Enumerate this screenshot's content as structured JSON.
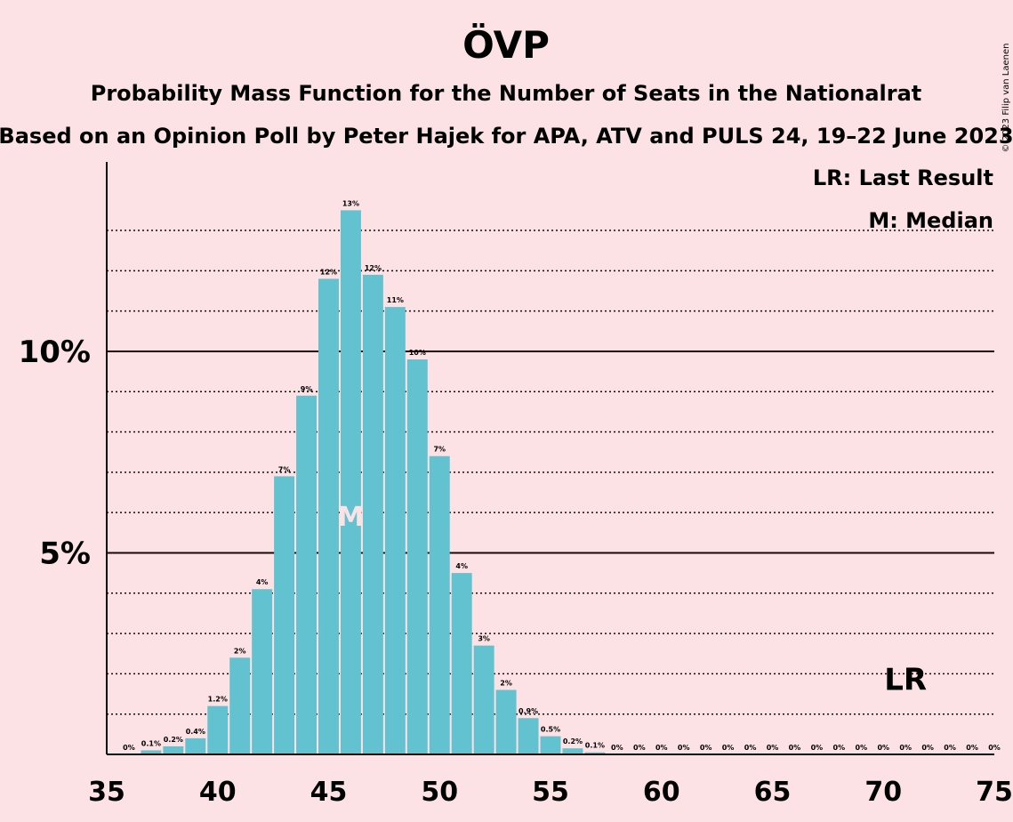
{
  "chart_data": {
    "type": "bar",
    "title": "ÖVP",
    "subtitle": "Probability Mass Function for the Number of Seats in the Nationalrat",
    "subtitle2": "Based on an Opinion Poll by Peter Hajek for APA, ATV and PULS 24, 19–22 June 2023",
    "copyright": "© 2023 Filip van Laenen",
    "legend": {
      "lr": "LR: Last Result",
      "median": "M: Median",
      "placement": "top-right"
    },
    "xlim": [
      35,
      75
    ],
    "ylim": [
      0,
      14.7
    ],
    "x_ticks": [
      {
        "value": 35,
        "label": "35"
      },
      {
        "value": 40,
        "label": "40"
      },
      {
        "value": 45,
        "label": "45"
      },
      {
        "value": 50,
        "label": "50"
      },
      {
        "value": 55,
        "label": "55"
      },
      {
        "value": 60,
        "label": "60"
      },
      {
        "value": 65,
        "label": "65"
      },
      {
        "value": 70,
        "label": "70"
      },
      {
        "value": 75,
        "label": "75"
      }
    ],
    "y_ticks": [
      {
        "value": 5,
        "label": "5%"
      },
      {
        "value": 10,
        "label": "10%"
      }
    ],
    "gridlines": [
      1,
      2,
      3,
      4,
      5,
      6,
      7,
      8,
      9,
      10,
      11,
      12,
      13
    ],
    "major_gridlines": [
      5,
      10
    ],
    "bar_color": "#63c2d0",
    "median_seat": 46,
    "median_label": "M",
    "last_result_seat": 71,
    "last_result_label": "LR",
    "points": [
      {
        "seat": 36,
        "value": 0.0,
        "label": "0%"
      },
      {
        "seat": 37,
        "value": 0.1,
        "label": "0.1%"
      },
      {
        "seat": 38,
        "value": 0.2,
        "label": "0.2%"
      },
      {
        "seat": 39,
        "value": 0.4,
        "label": "0.4%"
      },
      {
        "seat": 40,
        "value": 1.2,
        "label": "1.2%"
      },
      {
        "seat": 41,
        "value": 2.4,
        "label": "2%"
      },
      {
        "seat": 42,
        "value": 4.1,
        "label": "4%"
      },
      {
        "seat": 43,
        "value": 6.9,
        "label": "7%"
      },
      {
        "seat": 44,
        "value": 8.9,
        "label": "9%"
      },
      {
        "seat": 45,
        "value": 11.8,
        "label": "12%"
      },
      {
        "seat": 46,
        "value": 13.5,
        "label": "13%"
      },
      {
        "seat": 47,
        "value": 11.9,
        "label": "12%"
      },
      {
        "seat": 48,
        "value": 11.1,
        "label": "11%"
      },
      {
        "seat": 49,
        "value": 9.8,
        "label": "10%"
      },
      {
        "seat": 50,
        "value": 7.4,
        "label": "7%"
      },
      {
        "seat": 51,
        "value": 4.5,
        "label": "4%"
      },
      {
        "seat": 52,
        "value": 2.7,
        "label": "3%"
      },
      {
        "seat": 53,
        "value": 1.6,
        "label": "2%"
      },
      {
        "seat": 54,
        "value": 0.9,
        "label": "0.9%"
      },
      {
        "seat": 55,
        "value": 0.45,
        "label": "0.5%"
      },
      {
        "seat": 56,
        "value": 0.15,
        "label": "0.2%"
      },
      {
        "seat": 57,
        "value": 0.05,
        "label": "0.1%"
      },
      {
        "seat": 58,
        "value": 0.0,
        "label": "0%"
      },
      {
        "seat": 59,
        "value": 0.0,
        "label": "0%"
      },
      {
        "seat": 60,
        "value": 0.0,
        "label": "0%"
      },
      {
        "seat": 61,
        "value": 0.0,
        "label": "0%"
      },
      {
        "seat": 62,
        "value": 0.0,
        "label": "0%"
      },
      {
        "seat": 63,
        "value": 0.0,
        "label": "0%"
      },
      {
        "seat": 64,
        "value": 0.0,
        "label": "0%"
      },
      {
        "seat": 65,
        "value": 0.0,
        "label": "0%"
      },
      {
        "seat": 66,
        "value": 0.0,
        "label": "0%"
      },
      {
        "seat": 67,
        "value": 0.0,
        "label": "0%"
      },
      {
        "seat": 68,
        "value": 0.0,
        "label": "0%"
      },
      {
        "seat": 69,
        "value": 0.0,
        "label": "0%"
      },
      {
        "seat": 70,
        "value": 0.0,
        "label": "0%"
      },
      {
        "seat": 71,
        "value": 0.0,
        "label": "0%"
      },
      {
        "seat": 72,
        "value": 0.0,
        "label": "0%"
      },
      {
        "seat": 73,
        "value": 0.0,
        "label": "0%"
      },
      {
        "seat": 74,
        "value": 0.0,
        "label": "0%"
      },
      {
        "seat": 75,
        "value": 0.0,
        "label": "0%"
      }
    ]
  }
}
